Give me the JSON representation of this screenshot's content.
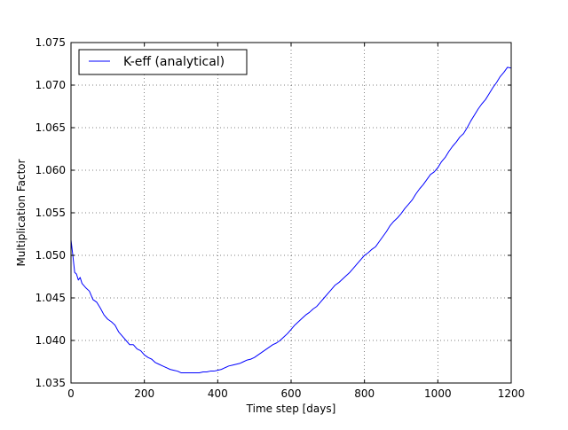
{
  "chart_data": {
    "type": "line",
    "title": "",
    "xlabel": "Time step [days]",
    "ylabel": "Multiplication Factor",
    "xlim": [
      0,
      1200
    ],
    "ylim": [
      1.035,
      1.075
    ],
    "x_ticks": [
      0,
      200,
      400,
      600,
      800,
      1000,
      1200
    ],
    "x_tick_labels": [
      "0",
      "200",
      "400",
      "600",
      "800",
      "1000",
      "1200"
    ],
    "y_ticks": [
      1.035,
      1.04,
      1.045,
      1.05,
      1.055,
      1.06,
      1.065,
      1.07,
      1.075
    ],
    "y_tick_labels": [
      "1.035",
      "1.040",
      "1.045",
      "1.050",
      "1.055",
      "1.060",
      "1.065",
      "1.070",
      "1.075"
    ],
    "grid": true,
    "legend_position": "top-left",
    "series": [
      {
        "name": "K-eff (analytical)",
        "color": "#0000ff",
        "points": [
          [
            0,
            1.0518
          ],
          [
            5,
            1.05
          ],
          [
            10,
            1.048
          ],
          [
            15,
            1.0478
          ],
          [
            20,
            1.0471
          ],
          [
            25,
            1.0474
          ],
          [
            30,
            1.0467
          ],
          [
            40,
            1.0462
          ],
          [
            50,
            1.0458
          ],
          [
            60,
            1.0448
          ],
          [
            70,
            1.0445
          ],
          [
            80,
            1.0438
          ],
          [
            90,
            1.043
          ],
          [
            100,
            1.0425
          ],
          [
            110,
            1.0422
          ],
          [
            120,
            1.0418
          ],
          [
            130,
            1.041
          ],
          [
            140,
            1.0405
          ],
          [
            150,
            1.04
          ],
          [
            160,
            1.0395
          ],
          [
            170,
            1.0395
          ],
          [
            180,
            1.039
          ],
          [
            190,
            1.0388
          ],
          [
            200,
            1.0383
          ],
          [
            210,
            1.038
          ],
          [
            220,
            1.0378
          ],
          [
            230,
            1.0374
          ],
          [
            240,
            1.0372
          ],
          [
            250,
            1.037
          ],
          [
            260,
            1.0368
          ],
          [
            270,
            1.0366
          ],
          [
            280,
            1.0365
          ],
          [
            290,
            1.0364
          ],
          [
            300,
            1.0362
          ],
          [
            310,
            1.0362
          ],
          [
            320,
            1.0362
          ],
          [
            330,
            1.0362
          ],
          [
            340,
            1.0362
          ],
          [
            350,
            1.0362
          ],
          [
            360,
            1.0363
          ],
          [
            370,
            1.0363
          ],
          [
            380,
            1.0364
          ],
          [
            390,
            1.0364
          ],
          [
            400,
            1.0365
          ],
          [
            410,
            1.0366
          ],
          [
            420,
            1.0368
          ],
          [
            430,
            1.037
          ],
          [
            440,
            1.0371
          ],
          [
            450,
            1.0372
          ],
          [
            460,
            1.0373
          ],
          [
            470,
            1.0375
          ],
          [
            480,
            1.0377
          ],
          [
            490,
            1.0378
          ],
          [
            500,
            1.038
          ],
          [
            510,
            1.0383
          ],
          [
            520,
            1.0386
          ],
          [
            530,
            1.0389
          ],
          [
            540,
            1.0392
          ],
          [
            550,
            1.0395
          ],
          [
            560,
            1.0397
          ],
          [
            570,
            1.04
          ],
          [
            580,
            1.0404
          ],
          [
            590,
            1.0408
          ],
          [
            600,
            1.0413
          ],
          [
            610,
            1.0418
          ],
          [
            620,
            1.0422
          ],
          [
            630,
            1.0426
          ],
          [
            640,
            1.043
          ],
          [
            650,
            1.0433
          ],
          [
            660,
            1.0437
          ],
          [
            670,
            1.044
          ],
          [
            680,
            1.0445
          ],
          [
            690,
            1.045
          ],
          [
            700,
            1.0455
          ],
          [
            710,
            1.046
          ],
          [
            720,
            1.0465
          ],
          [
            730,
            1.0468
          ],
          [
            740,
            1.0472
          ],
          [
            750,
            1.0476
          ],
          [
            760,
            1.048
          ],
          [
            770,
            1.0485
          ],
          [
            780,
            1.049
          ],
          [
            790,
            1.0495
          ],
          [
            800,
            1.05
          ],
          [
            810,
            1.0503
          ],
          [
            820,
            1.0507
          ],
          [
            830,
            1.051
          ],
          [
            840,
            1.0516
          ],
          [
            850,
            1.0522
          ],
          [
            860,
            1.0528
          ],
          [
            870,
            1.0535
          ],
          [
            880,
            1.054
          ],
          [
            890,
            1.0544
          ],
          [
            900,
            1.0549
          ],
          [
            910,
            1.0555
          ],
          [
            920,
            1.056
          ],
          [
            930,
            1.0565
          ],
          [
            940,
            1.0572
          ],
          [
            950,
            1.0578
          ],
          [
            960,
            1.0583
          ],
          [
            970,
            1.0589
          ],
          [
            980,
            1.0595
          ],
          [
            990,
            1.0598
          ],
          [
            1000,
            1.0603
          ],
          [
            1010,
            1.061
          ],
          [
            1020,
            1.0615
          ],
          [
            1030,
            1.0622
          ],
          [
            1040,
            1.0628
          ],
          [
            1050,
            1.0633
          ],
          [
            1060,
            1.0639
          ],
          [
            1070,
            1.0643
          ],
          [
            1080,
            1.065
          ],
          [
            1090,
            1.0658
          ],
          [
            1100,
            1.0665
          ],
          [
            1110,
            1.0672
          ],
          [
            1120,
            1.0678
          ],
          [
            1130,
            1.0683
          ],
          [
            1140,
            1.069
          ],
          [
            1150,
            1.0697
          ],
          [
            1160,
            1.0703
          ],
          [
            1170,
            1.071
          ],
          [
            1180,
            1.0715
          ],
          [
            1190,
            1.0721
          ],
          [
            1200,
            1.072
          ]
        ]
      }
    ]
  }
}
